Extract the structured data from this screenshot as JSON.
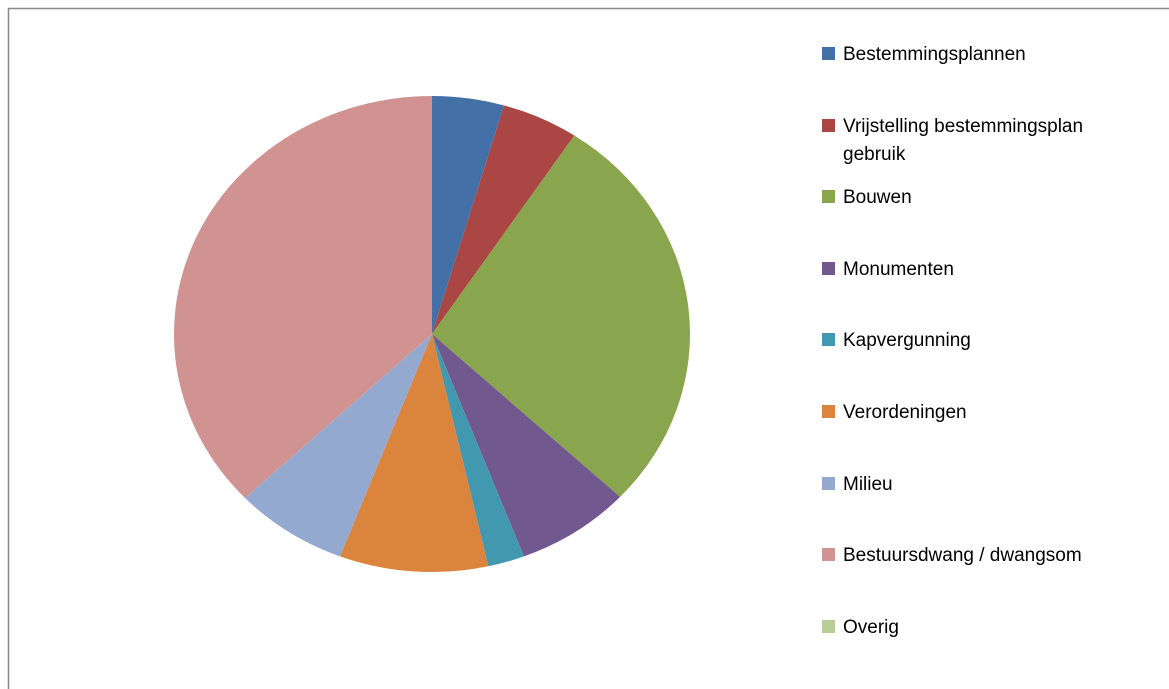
{
  "chart_data": {
    "type": "pie",
    "categories": [
      "Bestemmingsplannen",
      "Vrijstelling bestemmingsplan gebruik",
      "Bouwen",
      "Monumenten",
      "Kapvergunning",
      "Verordeningen",
      "Milieu",
      "Bestuursdwang / dwangsom",
      "Overig"
    ],
    "values": [
      4.5,
      4.8,
      27.7,
      7.2,
      2.3,
      9.3,
      7.1,
      37.1,
      0
    ],
    "colors": [
      "#4470a8",
      "#aa4643",
      "#89a54e",
      "#71588f",
      "#4198af",
      "#db843d",
      "#93a9cf",
      "#d19392",
      "#b9cd96"
    ],
    "legend": "right"
  }
}
